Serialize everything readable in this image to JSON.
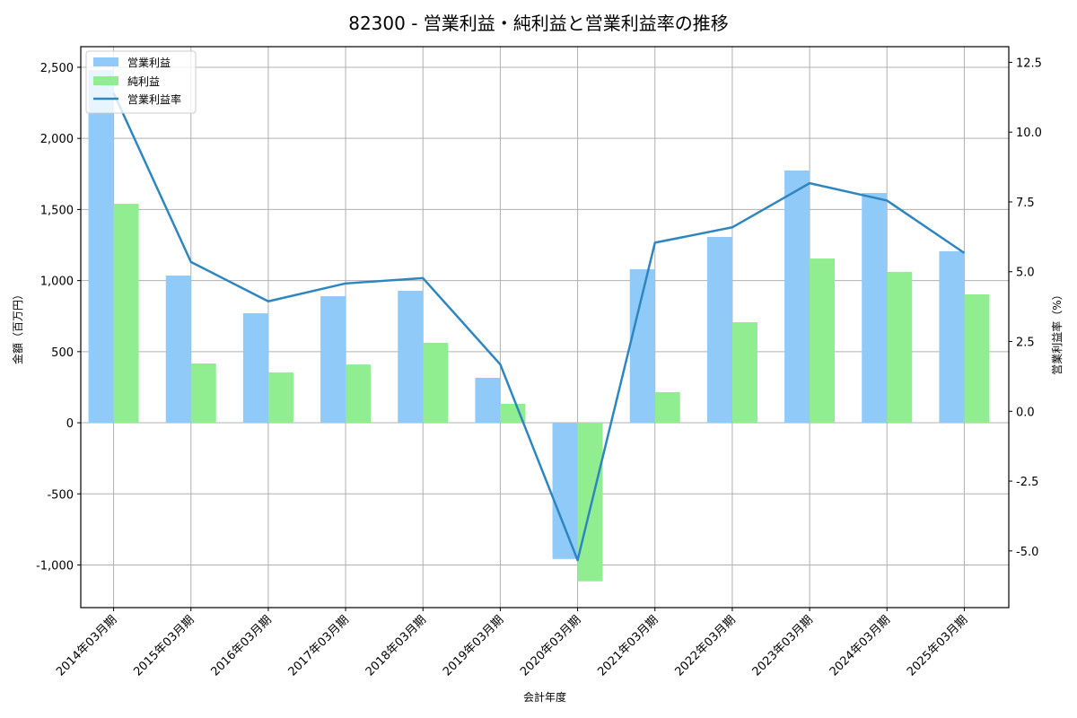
{
  "chart_data": {
    "type": "bar+line",
    "title": "82300 - 営業利益・純利益と営業利益率の推移",
    "xlabel": "会計年度",
    "ylabel": "金額（百万円）",
    "ylabel_right": "営業利益率（%）",
    "categories": [
      "2014年03月期",
      "2015年03月期",
      "2016年03月期",
      "2017年03月期",
      "2018年03月期",
      "2019年03月期",
      "2020年03月期",
      "2021年03月期",
      "2022年03月期",
      "2023年03月期",
      "2024年03月期",
      "2025年03月期"
    ],
    "series": [
      {
        "name": "営業利益",
        "type": "bar",
        "axis": "left",
        "color": "#90caf9",
        "values": [
          2480,
          1035,
          770,
          890,
          928,
          316,
          -958,
          1080,
          1307,
          1774,
          1616,
          1206
        ]
      },
      {
        "name": "純利益",
        "type": "bar",
        "axis": "left",
        "color": "#90ee90",
        "values": [
          1540,
          417,
          354,
          410,
          562,
          133,
          -1115,
          215,
          707,
          1155,
          1061,
          903
        ]
      },
      {
        "name": "営業利益率",
        "type": "line",
        "axis": "right",
        "color": "#2e86c1",
        "values": [
          11.4,
          5.35,
          3.94,
          4.58,
          4.77,
          1.68,
          -5.33,
          6.04,
          6.59,
          8.17,
          7.55,
          5.67
        ]
      }
    ],
    "ylim": [
      -1300,
      2645
    ],
    "ylim_right": [
      -7.03,
      13.06
    ],
    "yticks": [
      -1000,
      -500,
      0,
      500,
      1000,
      1500,
      2000,
      2500
    ],
    "ytick_labels": [
      "-1,000",
      "-500",
      "0",
      "500",
      "1,000",
      "1,500",
      "2,000",
      "2,500"
    ],
    "yticks_right": [
      -5.0,
      -2.5,
      0.0,
      2.5,
      5.0,
      7.5,
      10.0,
      12.5
    ],
    "ytick_labels_right": [
      "-5.0",
      "-2.5",
      "0.0",
      "2.5",
      "5.0",
      "7.5",
      "10.0",
      "12.5"
    ],
    "grid": true,
    "legend_position": "upper left"
  }
}
